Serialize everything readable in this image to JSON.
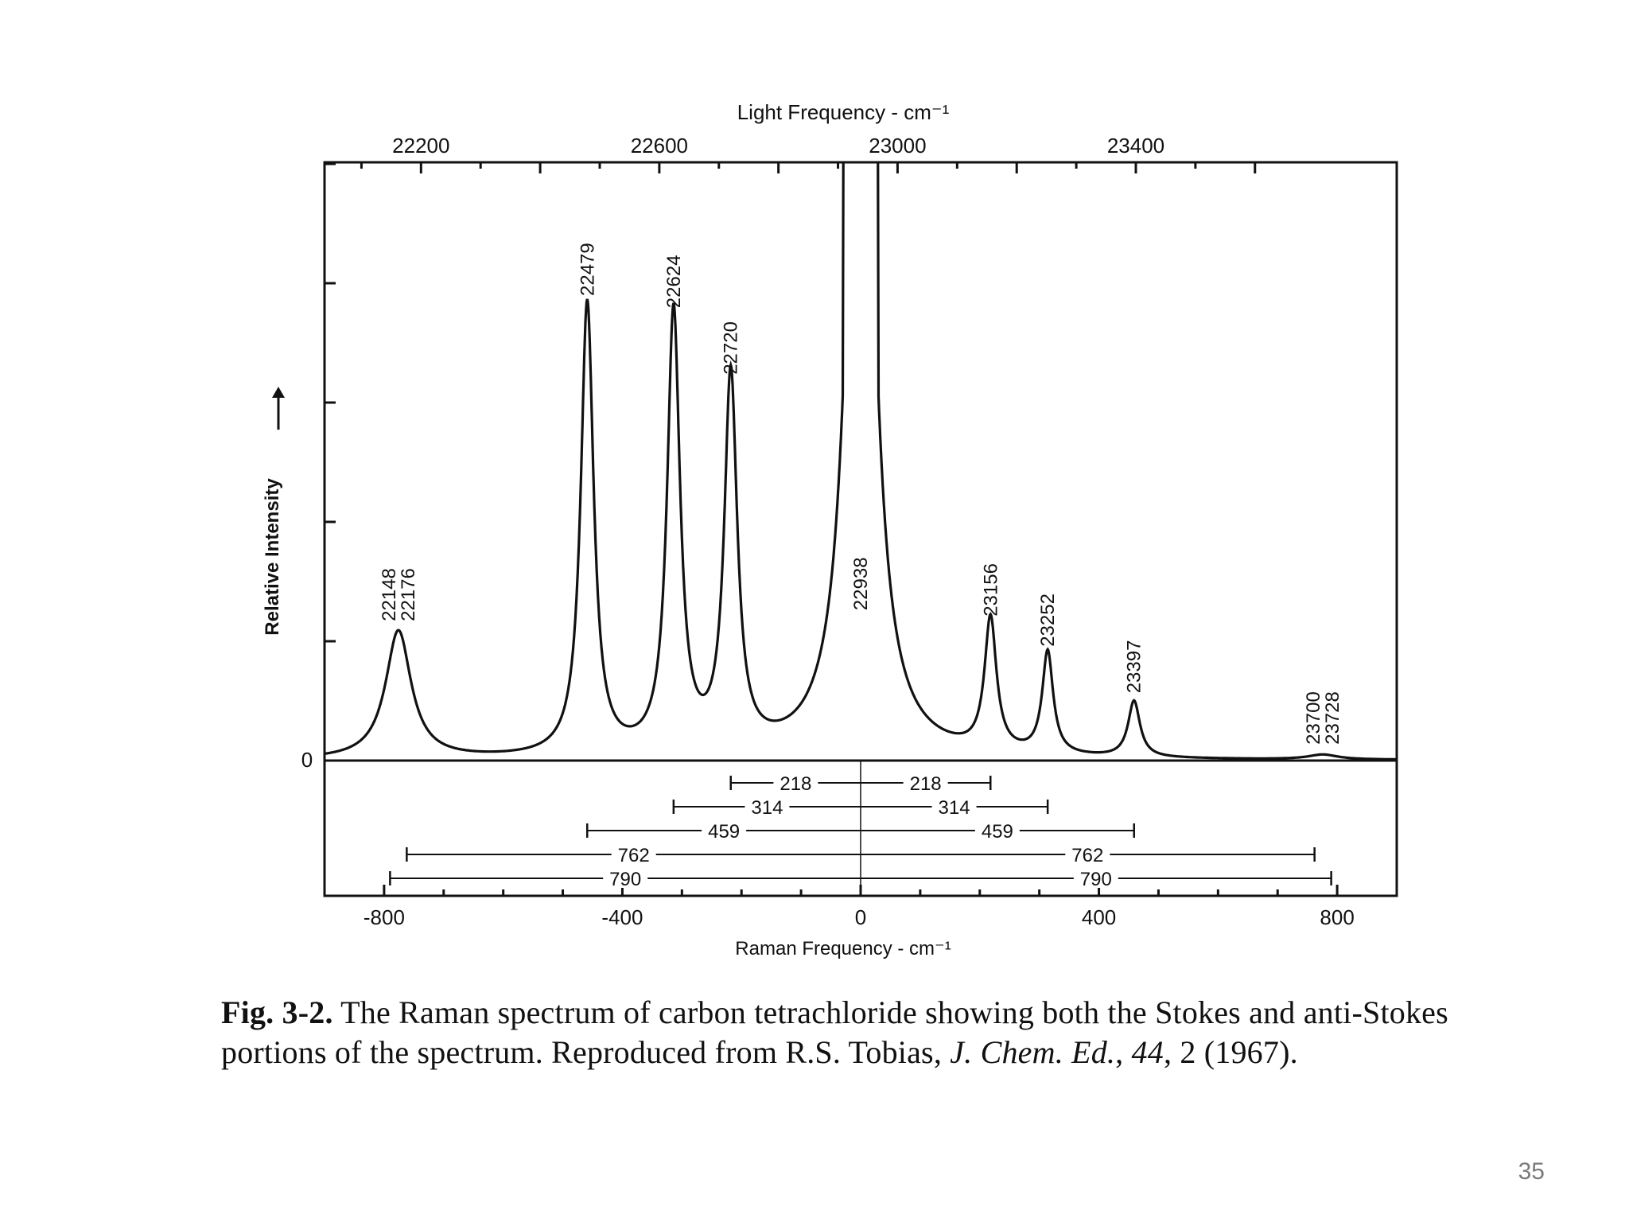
{
  "slide": {
    "number": "35"
  },
  "caption": {
    "figure_label": "Fig. 3-2.",
    "text_1": " The Raman spectrum of carbon tetrachloride showing both the Stokes and anti-Stokes portions of the spectrum. Reproduced from R.S. Tobias, ",
    "journal": "J. Chem. Ed.",
    "text_2": ", ",
    "volume": "44",
    "text_3": ", 2 (1967)."
  },
  "chart_data": {
    "type": "line",
    "xlabel": "Raman Frequency  - cm⁻¹",
    "x2label": "Light Frequency  - cm⁻¹",
    "ylabel": "Relative Intensity",
    "y_zero_label": "0",
    "xlim": [
      -900,
      900
    ],
    "ylim": [
      0,
      1
    ],
    "x_ticks": [
      "-800",
      "-400",
      "0",
      "400",
      "800"
    ],
    "x_tick_values": [
      -800,
      -400,
      0,
      400,
      800
    ],
    "x2_ticks": [
      "22200",
      "22600",
      "23000",
      "23400"
    ],
    "x2_tick_values": [
      22200,
      22600,
      23000,
      23400
    ],
    "x2_offset": 22938,
    "rayleigh_peak": {
      "x": 0,
      "width": 48,
      "height": 1.5
    },
    "peaks": [
      {
        "label": "22148\n22176",
        "x": -776,
        "height": 0.212,
        "width": 52
      },
      {
        "label": "22479",
        "x": -459,
        "height": 0.75,
        "width": 26
      },
      {
        "label": "22624",
        "x": -314,
        "height": 0.73,
        "width": 26
      },
      {
        "label": "22720",
        "x": -218,
        "height": 0.62,
        "width": 26
      },
      {
        "label": "22938",
        "x": 0,
        "height": 0.23,
        "width": 14
      },
      {
        "label": "23156",
        "x": 218,
        "height": 0.22,
        "width": 24
      },
      {
        "label": "23252",
        "x": 314,
        "height": 0.17,
        "width": 22
      },
      {
        "label": "23397",
        "x": 459,
        "height": 0.093,
        "width": 24
      },
      {
        "label": "23700\n23728",
        "x": 776,
        "height": 0.008,
        "width": 60
      }
    ],
    "shift_markers": [
      {
        "label": "218",
        "value": 218
      },
      {
        "label": "314",
        "value": 314
      },
      {
        "label": "459",
        "value": 459
      },
      {
        "label": "762",
        "value": 762
      },
      {
        "label": "790",
        "value": 790
      }
    ]
  }
}
